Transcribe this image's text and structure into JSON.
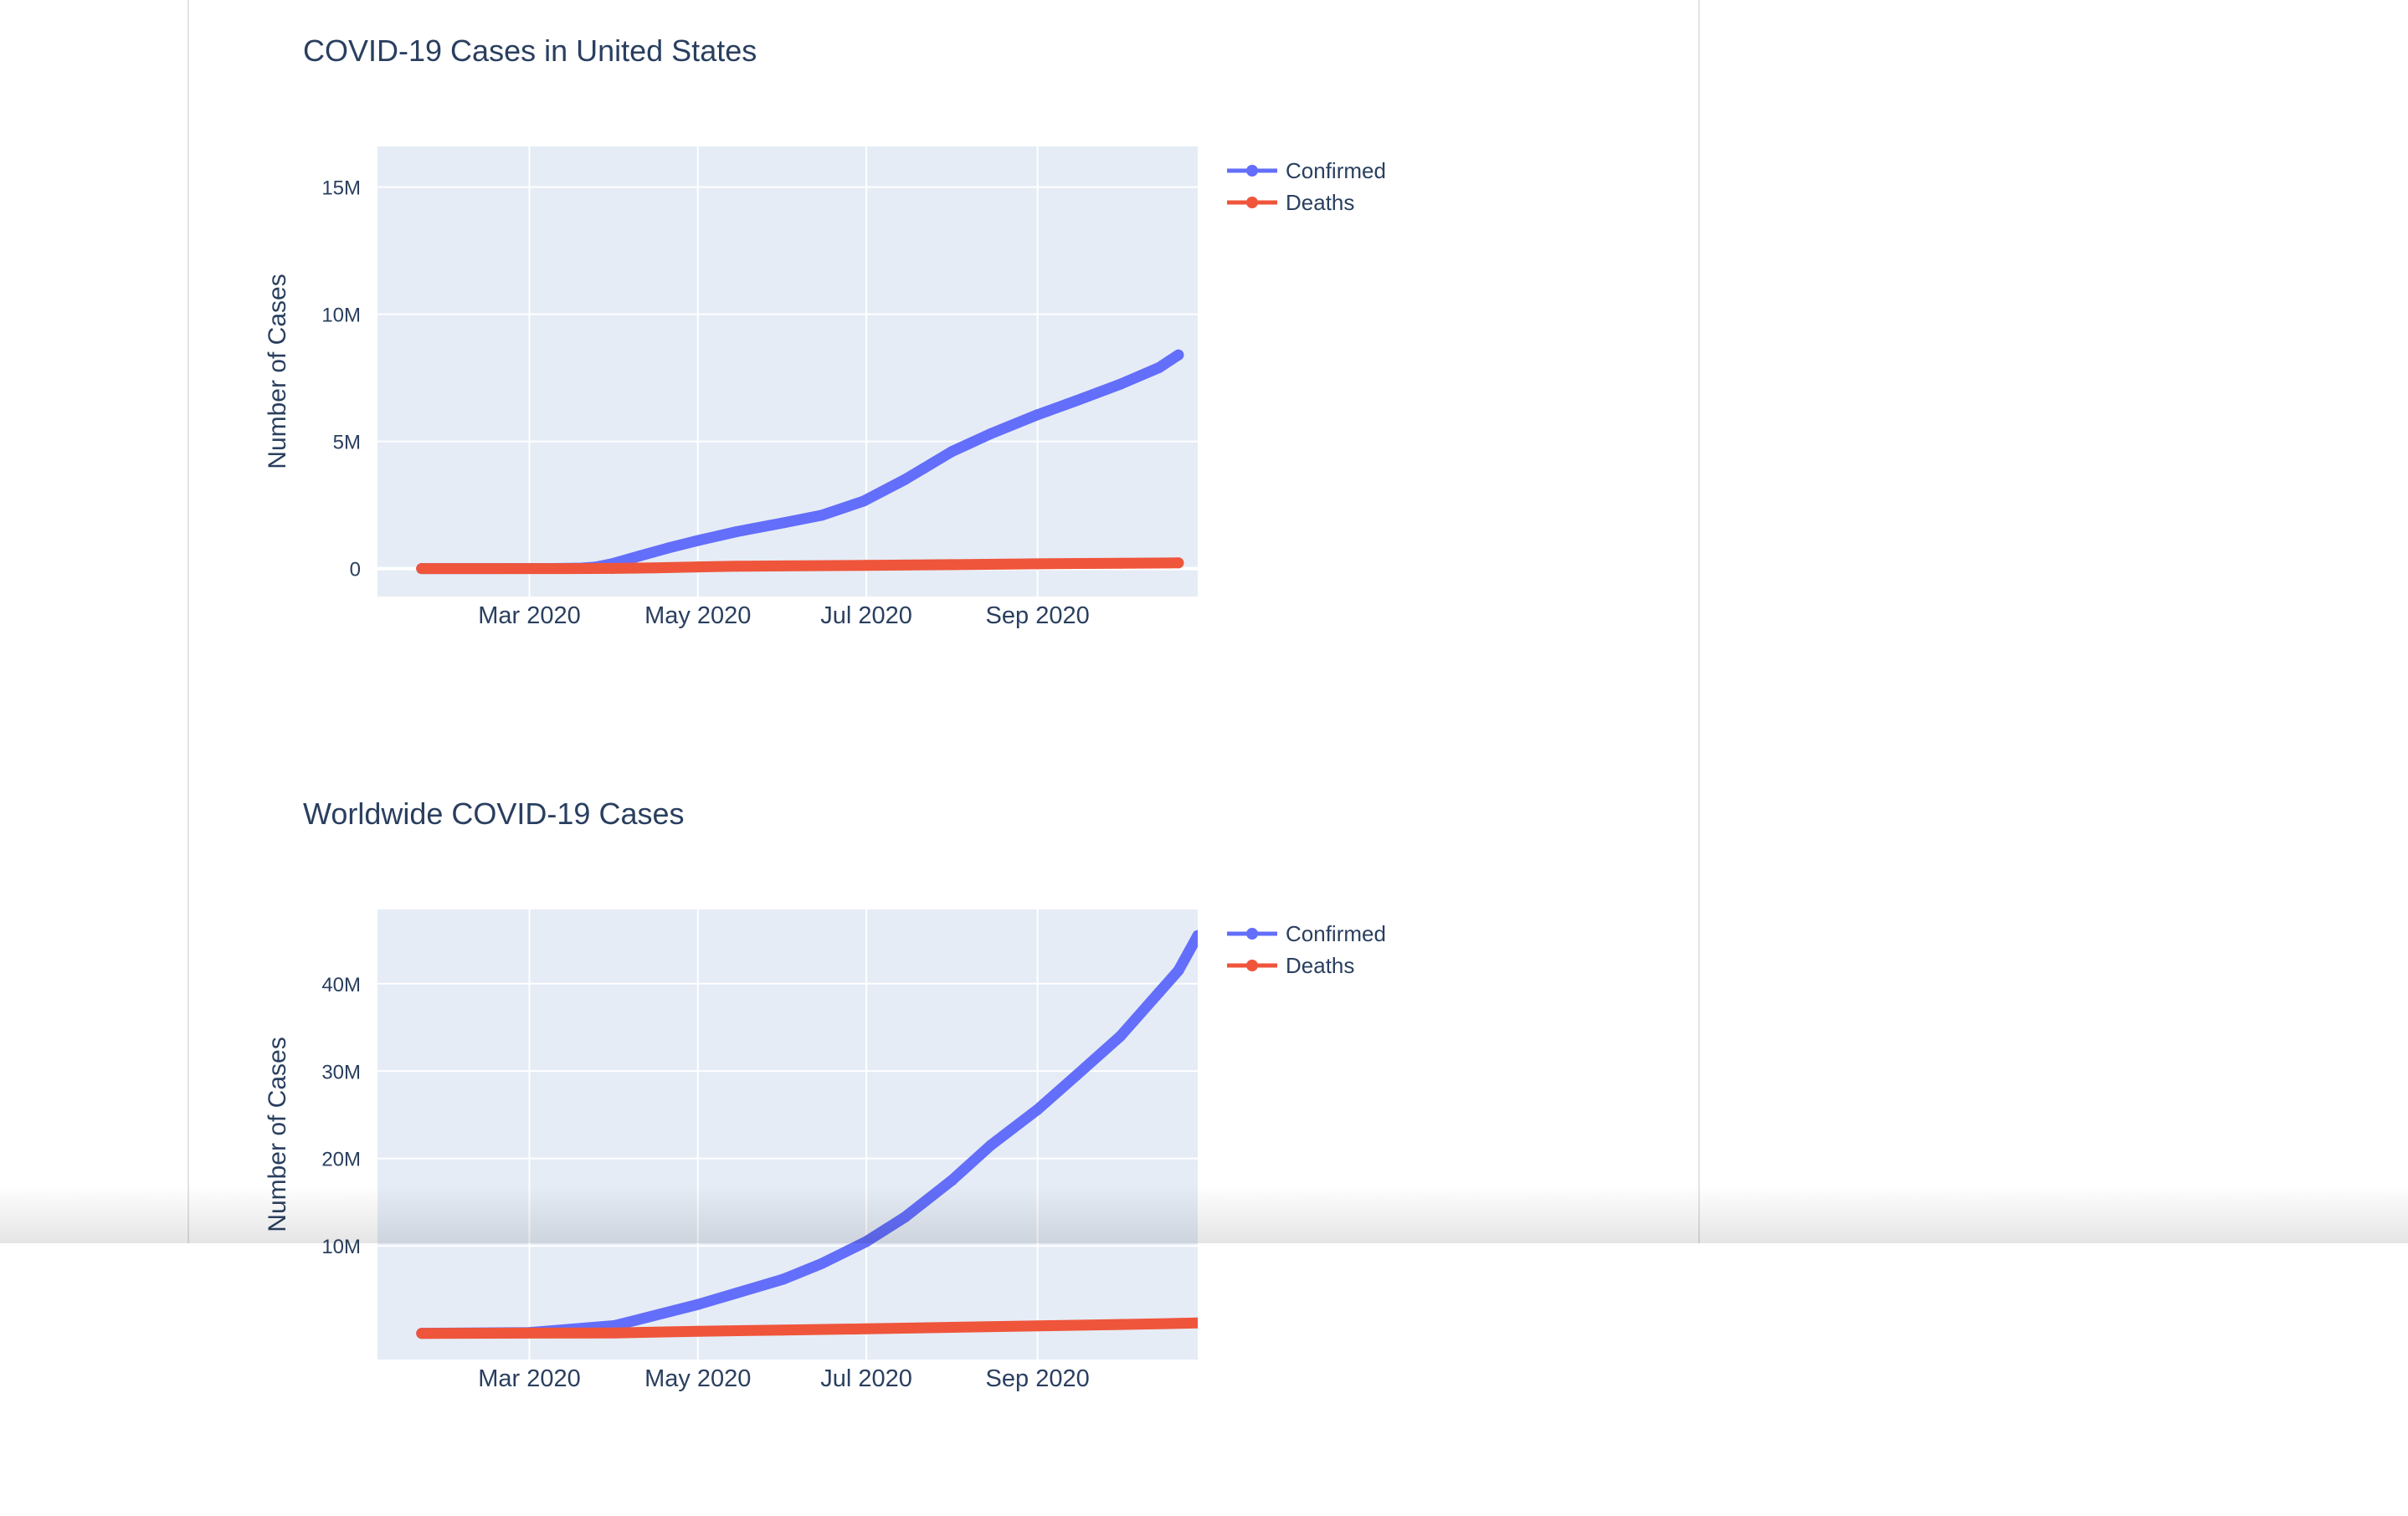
{
  "chart_data": [
    {
      "id": "us",
      "type": "line",
      "title": "COVID-19 Cases in United States",
      "xlabel": "",
      "ylabel": "Number of Cases",
      "x_ticks": [
        "Mar 2020",
        "May 2020",
        "Jul 2020",
        "Sep 2020"
      ],
      "x_tick_dates": [
        "2020-03-01",
        "2020-05-01",
        "2020-07-01",
        "2020-09-01"
      ],
      "xlim": [
        "2020-01-06",
        "2020-10-29"
      ],
      "y_ticks": [
        0,
        5000000,
        10000000,
        15000000
      ],
      "y_tick_labels": [
        "0",
        "5M",
        "10M",
        "15M"
      ],
      "ylim": [
        -1100000,
        16600000
      ],
      "grid": true,
      "legend_position": "top-right outside",
      "series": [
        {
          "name": "Confirmed",
          "color": "#636efa",
          "points": [
            [
              "2020-01-22",
              0
            ],
            [
              "2020-02-15",
              20
            ],
            [
              "2020-03-10",
              1000
            ],
            [
              "2020-03-20",
              20000
            ],
            [
              "2020-03-25",
              60000
            ],
            [
              "2020-03-31",
              190000
            ],
            [
              "2020-04-10",
              500000
            ],
            [
              "2020-04-20",
              800000
            ],
            [
              "2020-05-01",
              1100000
            ],
            [
              "2020-05-15",
              1450000
            ],
            [
              "2020-06-01",
              1800000
            ],
            [
              "2020-06-15",
              2100000
            ],
            [
              "2020-06-30",
              2650000
            ],
            [
              "2020-07-15",
              3500000
            ],
            [
              "2020-08-01",
              4600000
            ],
            [
              "2020-08-15",
              5300000
            ],
            [
              "2020-09-01",
              6050000
            ],
            [
              "2020-09-15",
              6600000
            ],
            [
              "2020-10-01",
              7250000
            ],
            [
              "2020-10-15",
              7900000
            ],
            [
              "2020-10-22",
              8400000
            ]
          ]
        },
        {
          "name": "Deaths",
          "color": "#ef553b",
          "points": [
            [
              "2020-01-22",
              0
            ],
            [
              "2020-03-15",
              0
            ],
            [
              "2020-03-31",
              5000
            ],
            [
              "2020-04-15",
              28000
            ],
            [
              "2020-05-01",
              65000
            ],
            [
              "2020-05-15",
              90000
            ],
            [
              "2020-06-01",
              105000
            ],
            [
              "2020-07-01",
              128000
            ],
            [
              "2020-08-01",
              155000
            ],
            [
              "2020-09-01",
              185000
            ],
            [
              "2020-10-01",
              208000
            ],
            [
              "2020-10-22",
              223000
            ]
          ]
        }
      ]
    },
    {
      "id": "world",
      "type": "line",
      "title": "Worldwide COVID-19 Cases",
      "xlabel": "",
      "ylabel": "Number of Cases",
      "x_ticks": [
        "Mar 2020",
        "May 2020",
        "Jul 2020",
        "Sep 2020"
      ],
      "x_tick_dates": [
        "2020-03-01",
        "2020-05-01",
        "2020-07-01",
        "2020-09-01"
      ],
      "xlim": [
        "2020-01-06",
        "2020-10-29"
      ],
      "y_ticks": [
        10000000,
        20000000,
        30000000,
        40000000
      ],
      "y_tick_labels": [
        "10M",
        "20M",
        "30M",
        "40M"
      ],
      "ylim": [
        -3000000,
        48500000
      ],
      "grid": true,
      "legend_position": "top-right outside",
      "series": [
        {
          "name": "Confirmed",
          "color": "#636efa",
          "points": [
            [
              "2020-01-22",
              500
            ],
            [
              "2020-03-01",
              90000
            ],
            [
              "2020-04-01",
              900000
            ],
            [
              "2020-05-01",
              3300000
            ],
            [
              "2020-06-01",
              6200000
            ],
            [
              "2020-06-15",
              8000000
            ],
            [
              "2020-07-01",
              10500000
            ],
            [
              "2020-07-15",
              13300000
            ],
            [
              "2020-08-01",
              17500000
            ],
            [
              "2020-08-15",
              21500000
            ],
            [
              "2020-09-01",
              25600000
            ],
            [
              "2020-09-15",
              29500000
            ],
            [
              "2020-10-01",
              34000000
            ],
            [
              "2020-10-15",
              39000000
            ],
            [
              "2020-10-22",
              41500000
            ],
            [
              "2020-10-29",
              45500000
            ]
          ]
        },
        {
          "name": "Deaths",
          "color": "#ef553b",
          "points": [
            [
              "2020-01-22",
              17
            ],
            [
              "2020-04-01",
              47000
            ],
            [
              "2020-05-01",
              235000
            ],
            [
              "2020-06-01",
              375000
            ],
            [
              "2020-07-01",
              515000
            ],
            [
              "2020-08-01",
              685000
            ],
            [
              "2020-09-01",
              855000
            ],
            [
              "2020-10-01",
              1015000
            ],
            [
              "2020-10-29",
              1180000
            ]
          ]
        }
      ]
    }
  ]
}
